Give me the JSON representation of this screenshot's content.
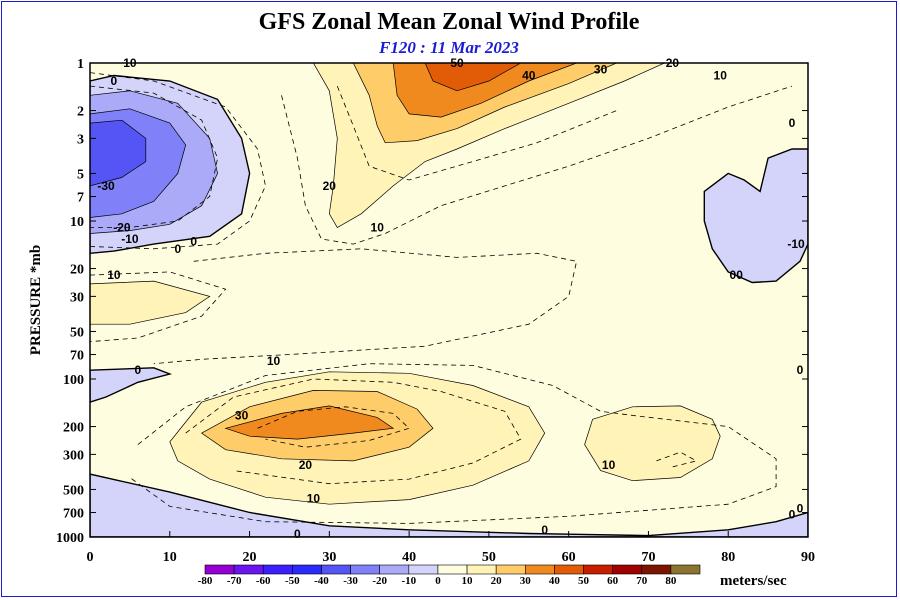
{
  "chart_data": {
    "type": "heatmap",
    "title": "GFS Zonal Mean Zonal Wind Profile",
    "subtitle": "F120 : 11 Mar 2023",
    "xlabel": "",
    "ylabel": "PRESSURE *mb",
    "x_ticks": [
      0,
      10,
      20,
      30,
      40,
      50,
      60,
      70,
      80,
      90
    ],
    "xlim": [
      0,
      90
    ],
    "y_scale": "log",
    "ylim": [
      1000,
      1
    ],
    "y_ticks": [
      1,
      2,
      3,
      5,
      7,
      10,
      20,
      30,
      50,
      70,
      100,
      200,
      300,
      500,
      700,
      1000
    ],
    "colorbar": {
      "unit": "meters/sec",
      "levels": [
        -80,
        -70,
        -60,
        -50,
        -40,
        -30,
        -20,
        -10,
        0,
        10,
        20,
        30,
        40,
        50,
        60,
        70,
        80
      ],
      "colors": [
        "#9400d3",
        "#6a14ef",
        "#3c1eff",
        "#2a2aff",
        "#5555f5",
        "#8080f8",
        "#aaaaf8",
        "#d4d4fa",
        "#fffde0",
        "#fff3b8",
        "#ffcc6a",
        "#f08a1e",
        "#e25c08",
        "#c81e00",
        "#a00000",
        "#7a1600"
      ],
      "overflow_color": "#8c7430"
    },
    "contour_labels": [
      {
        "value": "10",
        "lat": 5,
        "p": 1
      },
      {
        "value": "0",
        "lat": 3,
        "p": 1.3
      },
      {
        "value": "-30",
        "lat": 2,
        "p": 6
      },
      {
        "value": "-20",
        "lat": 4,
        "p": 11
      },
      {
        "value": "-10",
        "lat": 5,
        "p": 13
      },
      {
        "value": "0",
        "lat": 11,
        "p": 15
      },
      {
        "value": "0",
        "lat": 13,
        "p": 13.5
      },
      {
        "value": "10",
        "lat": 3,
        "p": 22
      },
      {
        "value": "50",
        "lat": 46,
        "p": 1
      },
      {
        "value": "40",
        "lat": 55,
        "p": 1.2
      },
      {
        "value": "30",
        "lat": 64,
        "p": 1.1
      },
      {
        "value": "20",
        "lat": 73,
        "p": 1
      },
      {
        "value": "10",
        "lat": 79,
        "p": 1.2
      },
      {
        "value": "20",
        "lat": 30,
        "p": 6
      },
      {
        "value": "10",
        "lat": 36,
        "p": 11
      },
      {
        "value": "0",
        "lat": 88,
        "p": 2.4
      },
      {
        "value": "-10",
        "lat": 88.5,
        "p": 14
      },
      {
        "value": "00",
        "lat": 81,
        "p": 22
      },
      {
        "value": "10",
        "lat": 23,
        "p": 77
      },
      {
        "value": "0",
        "lat": 6,
        "p": 88
      },
      {
        "value": "30",
        "lat": 19,
        "p": 170
      },
      {
        "value": "20",
        "lat": 27,
        "p": 350
      },
      {
        "value": "10",
        "lat": 28,
        "p": 570
      },
      {
        "value": "10",
        "lat": 65,
        "p": 350
      },
      {
        "value": "0",
        "lat": 26,
        "p": 960
      },
      {
        "value": "0",
        "lat": 57,
        "p": 900
      },
      {
        "value": "0",
        "lat": 89,
        "p": 88
      },
      {
        "value": "0",
        "lat": 89,
        "p": 660
      },
      {
        "value": "0",
        "lat": 88,
        "p": 720
      }
    ]
  }
}
